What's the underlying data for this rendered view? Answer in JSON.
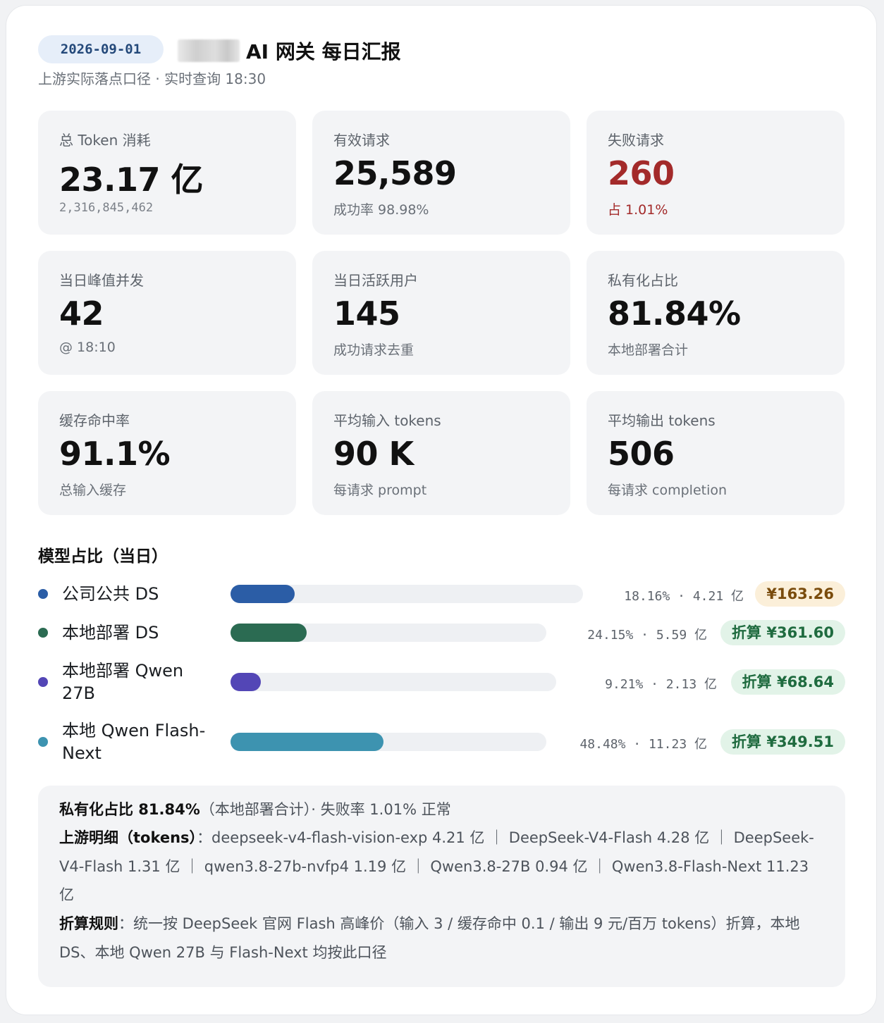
{
  "header": {
    "date": "2026-09-01",
    "title": "AI 网关 每日汇报",
    "subtitle": "上游实际落点口径 · 实时查询 18:30"
  },
  "stats": [
    {
      "label": "总 Token 消耗",
      "value": "23.17 亿",
      "note": "2,316,845,462"
    },
    {
      "label": "有效请求",
      "value": "25,589",
      "note": "成功率 98.98%"
    },
    {
      "label": "失败请求",
      "value": "260",
      "note": "占 1.01%"
    },
    {
      "label": "当日峰值并发",
      "value": "42",
      "note": "@ 18:10"
    },
    {
      "label": "当日活跃用户",
      "value": "145",
      "note": "成功请求去重"
    },
    {
      "label": "私有化占比",
      "value": "81.84%",
      "note": "本地部署合计"
    },
    {
      "label": "缓存命中率",
      "value": "91.1%",
      "note": "总输入缓存"
    },
    {
      "label": "平均输入 tokens",
      "value": "90 K",
      "note": "每请求 prompt"
    },
    {
      "label": "平均输出 tokens",
      "value": "506",
      "note": "每请求 completion"
    }
  ],
  "models": {
    "title": "模型占比（当日）",
    "items": [
      {
        "name": "公司公共 DS",
        "share": 18.16,
        "stats": "18.16% · 4.21 亿",
        "price": "¥163.26",
        "color": "#2b5da6"
      },
      {
        "name": "本地部署 DS",
        "share": 24.15,
        "stats": "24.15% · 5.59 亿",
        "price": "折算 ¥361.60",
        "color": "#2b6b52"
      },
      {
        "name": "本地部署 Qwen 27B",
        "share": 9.21,
        "stats": "9.21% · 2.13 亿",
        "price": "折算 ¥68.64",
        "color": "#5346b6"
      },
      {
        "name": "本地 Qwen Flash-Next",
        "share": 48.48,
        "stats": "48.48% · 11.23 亿",
        "price": "折算 ¥349.51",
        "color": "#3d93b0"
      }
    ]
  },
  "notes": {
    "line1_bold": "私有化占比 81.84%",
    "line1_rest": "（本地部署合计）· 失败率 1.01% 正常",
    "line2_bold": "上游明细（tokens）",
    "line2_rest": "：deepseek-v4-flash-vision-exp 4.21 亿 ｜ DeepSeek-V4-Flash 4.28 亿 ｜ DeepSeek-V4-Flash 1.31 亿 ｜ qwen3.8-27b-nvfp4 1.19 亿 ｜ Qwen3.8-27B 0.94 亿 ｜ Qwen3.8-Flash-Next 11.23 亿",
    "line3_bold": "折算规则",
    "line3_rest": "：统一按 DeepSeek 官网 Flash 高峰价（输入 3 / 缓存命中 0.1 / 输出 9 元/百万 tokens）折算，本地 DS、本地 Qwen 27B 与 Flash-Next 均按此口径"
  }
}
